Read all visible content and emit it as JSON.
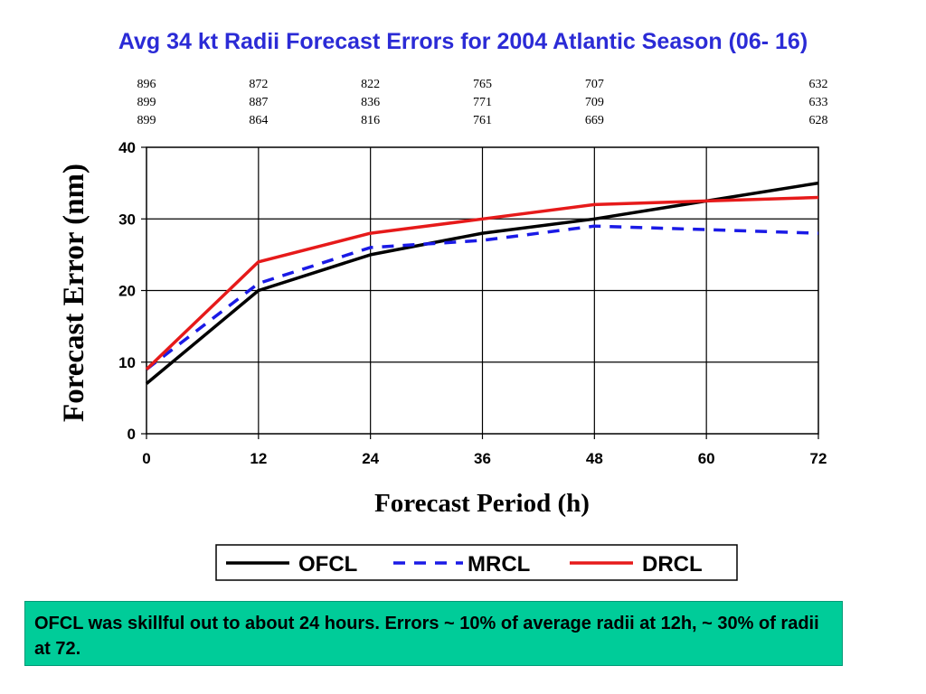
{
  "title": "Avg 34 kt Radii Forecast Errors for 2004 Atlantic Season (06- 16)",
  "chart_data": {
    "type": "line",
    "title": "Avg 34 kt Radii Forecast Errors for 2004 Atlantic Season (06- 16)",
    "xlabel": "Forecast Period (h)",
    "ylabel": "Forecast Error (nm)",
    "x": [
      0,
      12,
      24,
      36,
      48,
      60,
      72
    ],
    "xlim": [
      0,
      72
    ],
    "ylim": [
      0,
      40
    ],
    "x_ticks": [
      "0",
      "12",
      "24",
      "36",
      "48",
      "60",
      "72"
    ],
    "y_ticks": [
      "0",
      "10",
      "20",
      "30",
      "40"
    ],
    "grid": true,
    "legend_position": "bottom",
    "series": [
      {
        "name": "OFCL",
        "color": "#000000",
        "style": "solid",
        "values": [
          7,
          20,
          25,
          28,
          30,
          32.5,
          35
        ]
      },
      {
        "name": "MRCL",
        "color": "#1a1ae6",
        "style": "dashed",
        "values": [
          9,
          21,
          26,
          27,
          29,
          28.5,
          28
        ]
      },
      {
        "name": "DRCL",
        "color": "#e61a1a",
        "style": "solid",
        "values": [
          9,
          24,
          28,
          30,
          32,
          32.5,
          33
        ]
      }
    ],
    "sample_counts": {
      "columns": [
        {
          "x": 0,
          "values": [
            "896",
            "899",
            "899"
          ]
        },
        {
          "x": 12,
          "values": [
            "872",
            "887",
            "864"
          ]
        },
        {
          "x": 24,
          "values": [
            "822",
            "836",
            "816"
          ]
        },
        {
          "x": 36,
          "values": [
            "765",
            "771",
            "761"
          ]
        },
        {
          "x": 48,
          "values": [
            "707",
            "709",
            "669"
          ]
        },
        {
          "x": 72,
          "values": [
            "632",
            "633",
            "628"
          ]
        }
      ]
    }
  },
  "note": {
    "text": "OFCL was skillful out to about 24 hours.  Errors ~ 10% of average radii at 12h, ~ 30% of radii at 72.",
    "background": "#00cc99"
  }
}
